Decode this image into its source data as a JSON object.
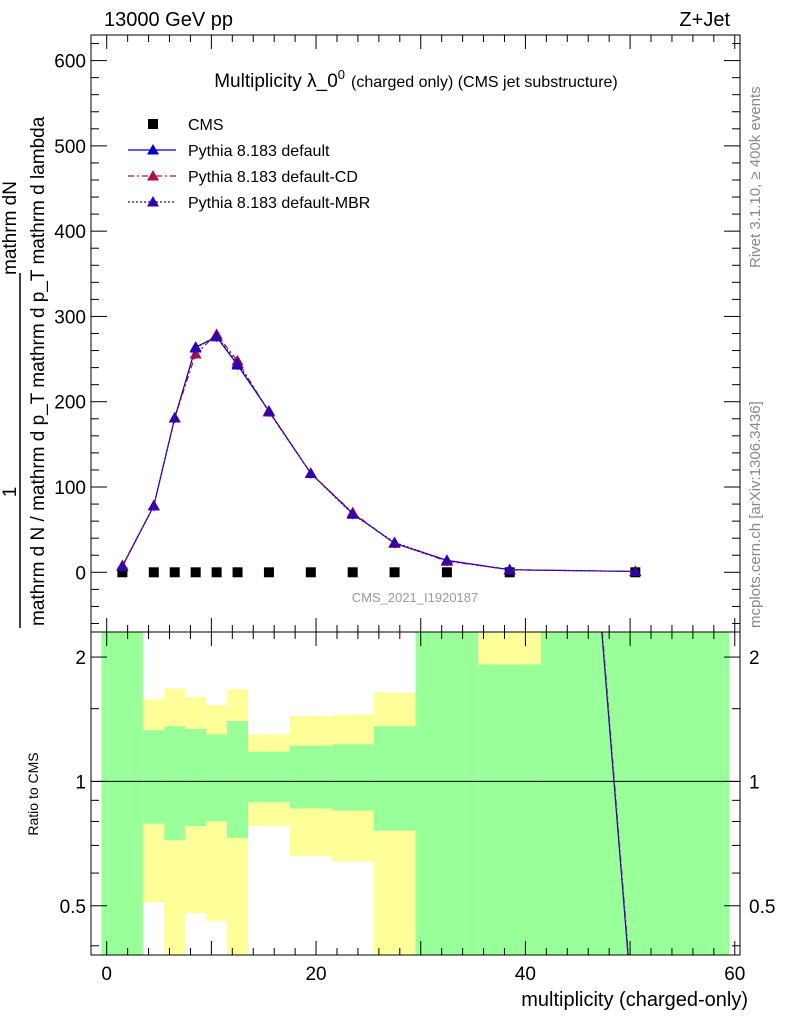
{
  "header": {
    "left": "13000 GeV pp",
    "right": "Z+Jet"
  },
  "side": {
    "rivet": "Rivet 3.1.10, ≥ 400k events",
    "mcplots": "mcplots.cern.ch [arXiv:1306.3436]"
  },
  "colors": {
    "cms": "#000000",
    "default": "#0000cc",
    "cd": "#aa1144",
    "mbr": "#3300aa",
    "band_green": "#99ff99",
    "band_yellow": "#ffff99"
  },
  "chart_data": [
    {
      "type": "line",
      "title": "Multiplicity λ_0",
      "title_sup": "0",
      "title_suffix": "(charged only) (CMS jet substructure)",
      "ylabel_top": "mathrm dN",
      "ylabel_bottom": "mathrm d N / mathrm d p_T mathrm d p_T mathrm d lambda",
      "ylabel_one": "1",
      "watermark": "CMS_2021_I1920187",
      "xlim": [
        -1.5,
        60.5
      ],
      "ylim": [
        -70,
        630
      ],
      "yticks": [
        0,
        100,
        200,
        300,
        400,
        500,
        600
      ],
      "ytick_labels": [
        "0",
        "100",
        "200",
        "300",
        "400",
        "500",
        "600"
      ],
      "legend": [
        {
          "key": "cms",
          "label": "CMS"
        },
        {
          "key": "default",
          "label": "Pythia 8.183 default"
        },
        {
          "key": "cd",
          "label": "Pythia 8.183 default-CD"
        },
        {
          "key": "mbr",
          "label": "Pythia 8.183 default-MBR"
        }
      ],
      "series": [
        {
          "name": "CMS",
          "key": "cms",
          "x": [
            1.5,
            4.5,
            6.5,
            8.5,
            10.5,
            12.5,
            15.5,
            19.5,
            23.5,
            27.5,
            32.5,
            38.5,
            50.5
          ],
          "values": [
            0,
            0,
            0,
            0,
            0,
            0,
            0,
            0,
            0,
            0,
            0,
            0,
            0
          ]
        },
        {
          "name": "Pythia 8.183 default",
          "key": "default",
          "x": [
            1.5,
            4.5,
            6.5,
            8.5,
            10.5,
            12.5,
            15.5,
            19.5,
            23.5,
            27.5,
            32.5,
            38.5,
            50.5
          ],
          "values": [
            7,
            78,
            181,
            264,
            276,
            243,
            189,
            116,
            69,
            34,
            14,
            3,
            1
          ]
        },
        {
          "name": "Pythia 8.183 default-CD",
          "key": "cd",
          "x": [
            1.5,
            4.5,
            6.5,
            8.5,
            10.5,
            12.5,
            15.5,
            19.5,
            23.5,
            27.5,
            32.5,
            38.5,
            50.5
          ],
          "values": [
            8,
            78,
            181,
            256,
            279,
            248,
            188,
            116,
            70,
            34,
            13,
            3,
            1
          ]
        },
        {
          "name": "Pythia 8.183 default-MBR",
          "key": "mbr",
          "x": [
            1.5,
            4.5,
            6.5,
            8.5,
            10.5,
            12.5,
            15.5,
            19.5,
            23.5,
            27.5,
            32.5,
            38.5,
            50.5
          ],
          "values": [
            7,
            78,
            181,
            263,
            277,
            245,
            189,
            116,
            68,
            35,
            14,
            3,
            1
          ]
        }
      ]
    },
    {
      "type": "line",
      "title": "",
      "xlabel": "multiplicity (charged-only)",
      "ylabel": "Ratio to CMS",
      "xlim": [
        -1.5,
        60.5
      ],
      "ylim": [
        0.38,
        2.3
      ],
      "xticks": [
        0,
        20,
        40,
        60
      ],
      "xtick_labels": [
        "0",
        "20",
        "40",
        "60"
      ],
      "yticks": [
        0.5,
        1,
        2
      ],
      "ytick_labels": [
        "0.5",
        "1",
        "2"
      ],
      "bins": [
        {
          "lo": -0.5,
          "hi": 3.5,
          "green": [
            0.0,
            9.9
          ],
          "yellow": [
            0.0,
            9.9
          ]
        },
        {
          "lo": 3.5,
          "hi": 5.5,
          "green": [
            0.79,
            1.33
          ],
          "yellow": [
            0.51,
            1.58
          ]
        },
        {
          "lo": 5.5,
          "hi": 7.5,
          "green": [
            0.72,
            1.36
          ],
          "yellow": [
            0.0,
            1.68
          ]
        },
        {
          "lo": 7.5,
          "hi": 9.5,
          "green": [
            0.78,
            1.34
          ],
          "yellow": [
            0.48,
            1.6
          ]
        },
        {
          "lo": 9.5,
          "hi": 11.5,
          "green": [
            0.8,
            1.3
          ],
          "yellow": [
            0.46,
            1.53
          ]
        },
        {
          "lo": 11.5,
          "hi": 13.5,
          "green": [
            0.73,
            1.4
          ],
          "yellow": [
            0.0,
            1.67
          ]
        },
        {
          "lo": 13.5,
          "hi": 17.5,
          "green": [
            0.89,
            1.18
          ],
          "yellow": [
            0.78,
            1.3
          ]
        },
        {
          "lo": 17.5,
          "hi": 21.5,
          "green": [
            0.86,
            1.22
          ],
          "yellow": [
            0.66,
            1.44
          ]
        },
        {
          "lo": 21.5,
          "hi": 25.5,
          "green": [
            0.85,
            1.23
          ],
          "yellow": [
            0.64,
            1.45
          ]
        },
        {
          "lo": 25.5,
          "hi": 29.5,
          "green": [
            0.76,
            1.36
          ],
          "yellow": [
            0.0,
            1.64
          ]
        },
        {
          "lo": 29.5,
          "hi": 35.5,
          "green": [
            0.0,
            9.9
          ],
          "yellow": [
            0.0,
            9.9
          ]
        },
        {
          "lo": 35.5,
          "hi": 41.5,
          "green": [
            0.0,
            1.92
          ],
          "yellow": [
            0.0,
            9.9
          ]
        },
        {
          "lo": 41.5,
          "hi": 59.5,
          "green": [
            0.0,
            9.9
          ],
          "yellow": [
            0.0,
            9.9
          ]
        }
      ],
      "ratio_line": {
        "x": [
          47.3,
          49.8
        ],
        "values": [
          2.3,
          0.38
        ]
      }
    }
  ]
}
